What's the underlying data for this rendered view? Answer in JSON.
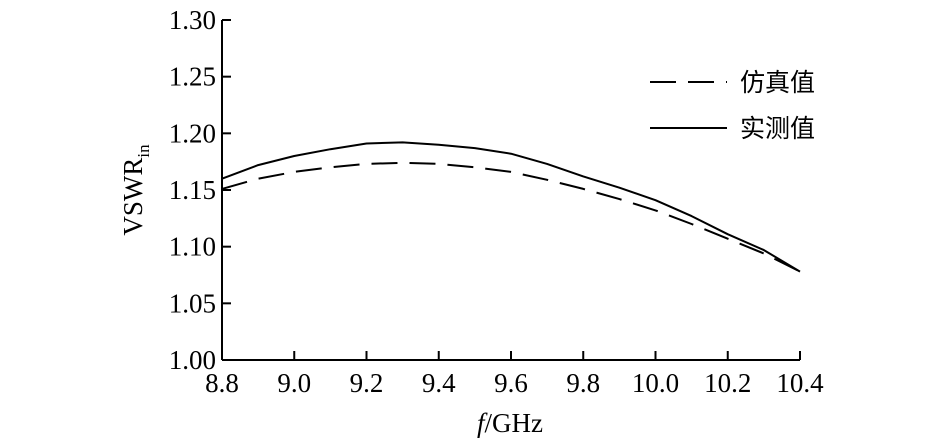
{
  "chart_data": {
    "type": "line",
    "xlabel": {
      "italic": "f",
      "rest": "/GHz"
    },
    "ylabel": {
      "main": "VSWR",
      "sub": "in"
    },
    "xlim": [
      8.8,
      10.4
    ],
    "ylim": [
      1.0,
      1.3
    ],
    "xticks": [
      8.8,
      9.0,
      9.2,
      9.4,
      9.6,
      9.8,
      10.0,
      10.2,
      10.4
    ],
    "xtick_labels": [
      "8.8",
      "9.0",
      "9.2",
      "9.4",
      "9.6",
      "9.8",
      "10.0",
      "10.2",
      "10.4"
    ],
    "yticks": [
      1.0,
      1.05,
      1.1,
      1.15,
      1.2,
      1.25,
      1.3
    ],
    "ytick_labels": [
      "1.00",
      "1.05",
      "1.10",
      "1.15",
      "1.20",
      "1.25",
      "1.30"
    ],
    "grid": false,
    "legend_position": "top-right",
    "series": [
      {
        "name": "仿真值",
        "style": "dashed",
        "color": "#000000",
        "x": [
          8.8,
          8.9,
          9.0,
          9.1,
          9.2,
          9.3,
          9.4,
          9.5,
          9.6,
          9.7,
          9.8,
          9.9,
          10.0,
          10.1,
          10.2,
          10.3,
          10.4
        ],
        "y": [
          1.151,
          1.16,
          1.166,
          1.17,
          1.173,
          1.174,
          1.173,
          1.17,
          1.166,
          1.159,
          1.151,
          1.142,
          1.132,
          1.12,
          1.107,
          1.094,
          1.078
        ]
      },
      {
        "name": "实测值",
        "style": "solid",
        "color": "#000000",
        "x": [
          8.8,
          8.9,
          9.0,
          9.1,
          9.2,
          9.3,
          9.4,
          9.5,
          9.6,
          9.7,
          9.8,
          9.9,
          10.0,
          10.1,
          10.2,
          10.3,
          10.4
        ],
        "y": [
          1.16,
          1.172,
          1.18,
          1.186,
          1.191,
          1.192,
          1.19,
          1.187,
          1.182,
          1.173,
          1.162,
          1.152,
          1.141,
          1.127,
          1.111,
          1.097,
          1.078
        ]
      }
    ]
  }
}
